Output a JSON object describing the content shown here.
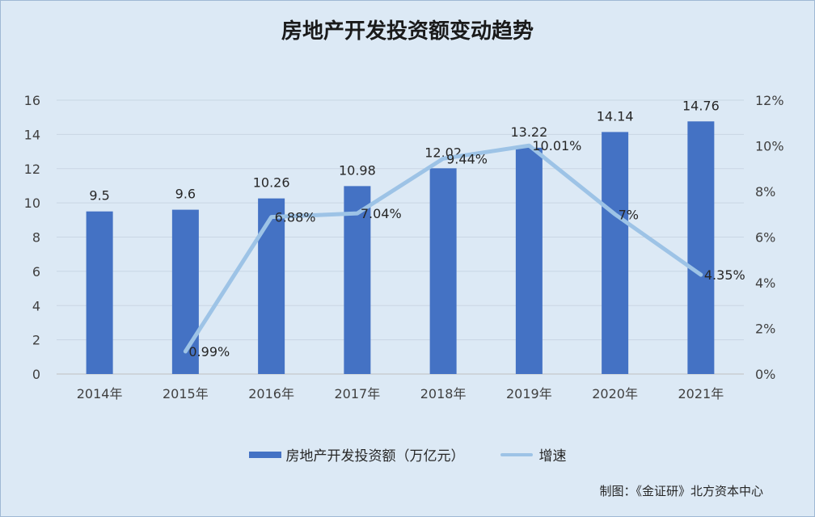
{
  "title": "房地产开发投资额变动趋势",
  "source": "制图：《金证研》北方资本中心",
  "colors": {
    "bar": "#4472c4",
    "line": "#9dc3e6",
    "grid": "#c9d6e4",
    "background": "#dce9f5"
  },
  "chart_data": {
    "type": "bar+line",
    "title": "房地产开发投资额变动趋势",
    "categories": [
      "2014年",
      "2015年",
      "2016年",
      "2017年",
      "2018年",
      "2019年",
      "2020年",
      "2021年"
    ],
    "series": [
      {
        "name": "房地产开发投资额（万亿元）",
        "type": "bar",
        "axis": "left",
        "values": [
          9.5,
          9.6,
          10.26,
          10.98,
          12.02,
          13.22,
          14.14,
          14.76
        ],
        "labels": [
          "9.5",
          "9.6",
          "10.26",
          "10.98",
          "12.02",
          "13.22",
          "14.14",
          "14.76"
        ]
      },
      {
        "name": "增速",
        "type": "line",
        "axis": "right",
        "values": [
          null,
          0.99,
          6.88,
          7.04,
          9.44,
          10.01,
          7,
          4.35
        ],
        "labels": [
          "",
          "0.99%",
          "6.88%",
          "7.04%",
          "9.44%",
          "10.01%",
          "7%",
          "4.35%"
        ]
      }
    ],
    "y_left": {
      "min": 0,
      "max": 16,
      "ticks": [
        "0",
        "2",
        "4",
        "6",
        "8",
        "10",
        "12",
        "14",
        "16"
      ]
    },
    "y_right": {
      "min": 0,
      "max": 12,
      "ticks": [
        "0%",
        "2%",
        "4%",
        "6%",
        "8%",
        "10%",
        "12%"
      ]
    },
    "grid": true,
    "legend": "bottom"
  }
}
